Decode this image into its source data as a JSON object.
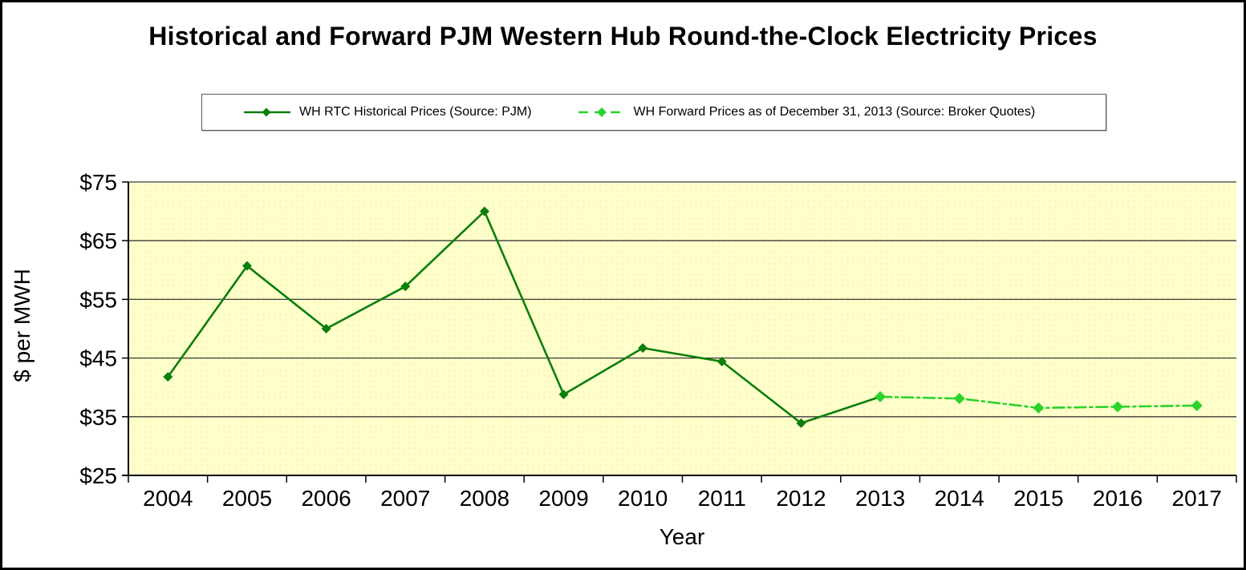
{
  "title": "Historical and Forward PJM Western Hub Round-the-Clock Electricity Prices",
  "legend": {
    "items": [
      {
        "label": "WH RTC Historical Prices (Source: PJM)"
      },
      {
        "label": "WH Forward Prices as of December 31, 2013 (Source: Broker Quotes)"
      }
    ]
  },
  "chart_data": {
    "type": "line",
    "title": "Historical and Forward PJM Western Hub Round-the-Clock Electricity Prices",
    "xlabel": "Year",
    "ylabel": "$ per MWH",
    "categories": [
      "2004",
      "2005",
      "2006",
      "2007",
      "2008",
      "2009",
      "2010",
      "2011",
      "2012",
      "2013",
      "2014",
      "2015",
      "2016",
      "2017"
    ],
    "ylim": [
      25,
      75
    ],
    "ytick_step": 10,
    "ytick_labels": [
      "$25",
      "$35",
      "$45",
      "$55",
      "$65",
      "$75"
    ],
    "grid": true,
    "plot_bg": "#FFFFCC",
    "legend_position": "top-center",
    "series": [
      {
        "name": "WH RTC Historical Prices (Source: PJM)",
        "color": "#0B7E0B",
        "line_style": "solid",
        "marker": "diamond",
        "years": [
          "2004",
          "2005",
          "2006",
          "2007",
          "2008",
          "2009",
          "2010",
          "2011",
          "2012",
          "2013"
        ],
        "values": [
          41.8,
          60.7,
          50.0,
          57.2,
          70.0,
          38.8,
          46.7,
          44.4,
          33.9,
          38.4
        ]
      },
      {
        "name": "WH Forward Prices as of December 31, 2013 (Source: Broker Quotes)",
        "color": "#2BD32B",
        "line_style": "dash-dot",
        "marker": "diamond",
        "years": [
          "2013",
          "2014",
          "2015",
          "2016",
          "2017"
        ],
        "values": [
          38.4,
          38.1,
          36.5,
          36.7,
          36.9
        ]
      }
    ]
  }
}
